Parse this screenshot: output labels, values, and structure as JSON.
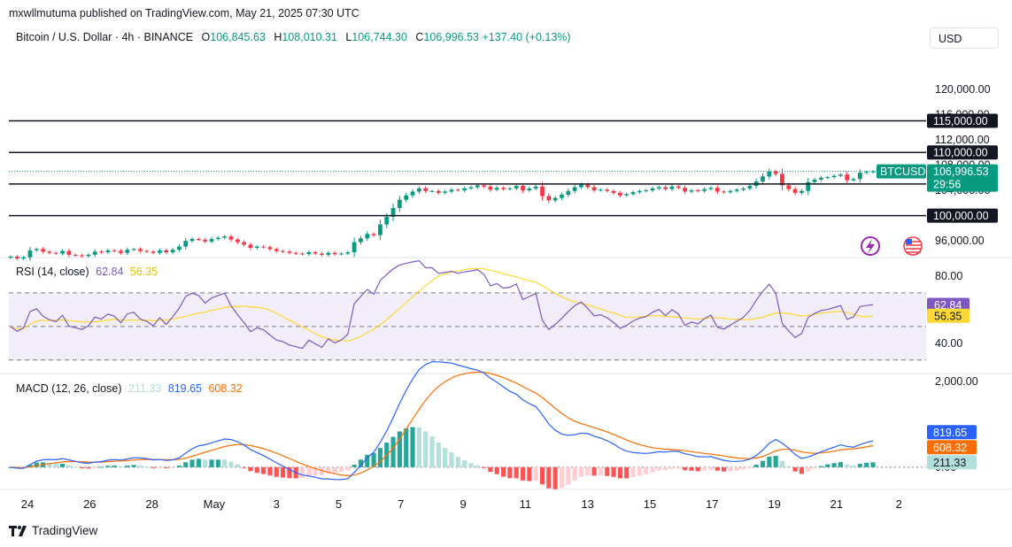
{
  "publisher_line": "mxwllmutuma published on TradingView.com, May 21, 2025 07:30 UTC",
  "symbol": {
    "title": "Bitcoin / U.S. Dollar · 4h · BINANCE",
    "open_label": "O",
    "open": "106,845.63",
    "high_label": "H",
    "high": "108,010.31",
    "low_label": "L",
    "low": "106,744.30",
    "close_label": "C",
    "close": "106,996.53",
    "change": "+137.40 (+0.13%)"
  },
  "currency": "USD",
  "footer": {
    "brand": "TradingView"
  },
  "colors": {
    "up": "#089981",
    "down": "#f23645",
    "rsi": "#7e57c2",
    "rsi_ma": "#fdd835",
    "macd": "#2962ff",
    "signal": "#ff6d00",
    "level": "#131722"
  },
  "chart_data": [
    {
      "type": "candlestick",
      "title": "Bitcoin / U.S. Dollar · 4h · BINANCE",
      "x_tick_labels": [
        "24",
        "26",
        "28",
        "May",
        "3",
        "5",
        "7",
        "9",
        "11",
        "13",
        "15",
        "17",
        "19",
        "21",
        "2"
      ],
      "y_tick_labels": [
        "120,000.00",
        "116,000.00",
        "112,000.00",
        "108,000.00",
        "104,000.00",
        "100,000.00",
        "96,000.00"
      ],
      "ylim": [
        93500,
        126000
      ],
      "horizontal_levels": [
        {
          "value": 115000,
          "label": "115,000.00"
        },
        {
          "value": 110000,
          "label": "110,000.00"
        },
        {
          "value": 105000,
          "label": "105,000.00"
        },
        {
          "value": 100000,
          "label": "100,000.00"
        }
      ],
      "last_price": {
        "symbol": "BTCUSD",
        "value": 106996.53,
        "label": "106,996.53",
        "countdown": "29:56"
      },
      "closes": [
        93500,
        93200,
        93400,
        94500,
        94700,
        94300,
        94100,
        94000,
        94400,
        93800,
        93700,
        93600,
        93800,
        94300,
        94200,
        94500,
        94400,
        94100,
        94600,
        94700,
        94400,
        94300,
        94100,
        94500,
        94200,
        94600,
        95100,
        96000,
        96300,
        96200,
        95900,
        96300,
        96500,
        96700,
        96200,
        95800,
        95400,
        94900,
        95100,
        95000,
        94700,
        94400,
        94300,
        94100,
        94000,
        93900,
        94200,
        94000,
        93800,
        94100,
        93900,
        94000,
        94200,
        95800,
        96400,
        97100,
        96900,
        98600,
        99800,
        101200,
        102500,
        103200,
        103800,
        104300,
        103900,
        103900,
        103600,
        103800,
        104100,
        104000,
        104300,
        104500,
        104800,
        104600,
        104100,
        104400,
        104200,
        104300,
        104700,
        104000,
        104300,
        104600,
        103100,
        102400,
        102800,
        103300,
        103900,
        104500,
        104900,
        104500,
        104000,
        104100,
        103900,
        103600,
        103200,
        103400,
        103700,
        103900,
        104000,
        104300,
        104500,
        104200,
        104600,
        104400,
        103800,
        104000,
        103900,
        104200,
        104400,
        103800,
        103700,
        103900,
        104100,
        104300,
        104700,
        105400,
        106200,
        107000,
        106600,
        104800,
        104200,
        103600,
        103900,
        105300,
        105700,
        106000,
        106100,
        106300,
        106500,
        105600,
        105800,
        106800,
        106900,
        107000
      ],
      "rsi": {
        "label": "RSI (14, close)",
        "rsi_value": "62.84",
        "ma_value": "56.35",
        "y_tick_labels": [
          "80.00",
          "40.00"
        ],
        "bands": [
          30,
          70
        ],
        "mid": 50,
        "ylim": [
          23,
          90
        ]
      },
      "macd": {
        "label": "MACD (12, 26, close)",
        "hist_value": "211.33",
        "macd_value": "819.65",
        "signal_value": "608.32",
        "y_tick_labels": [
          "2,000.00",
          "0.00"
        ],
        "ylim": [
          -500,
          2150
        ]
      }
    }
  ]
}
